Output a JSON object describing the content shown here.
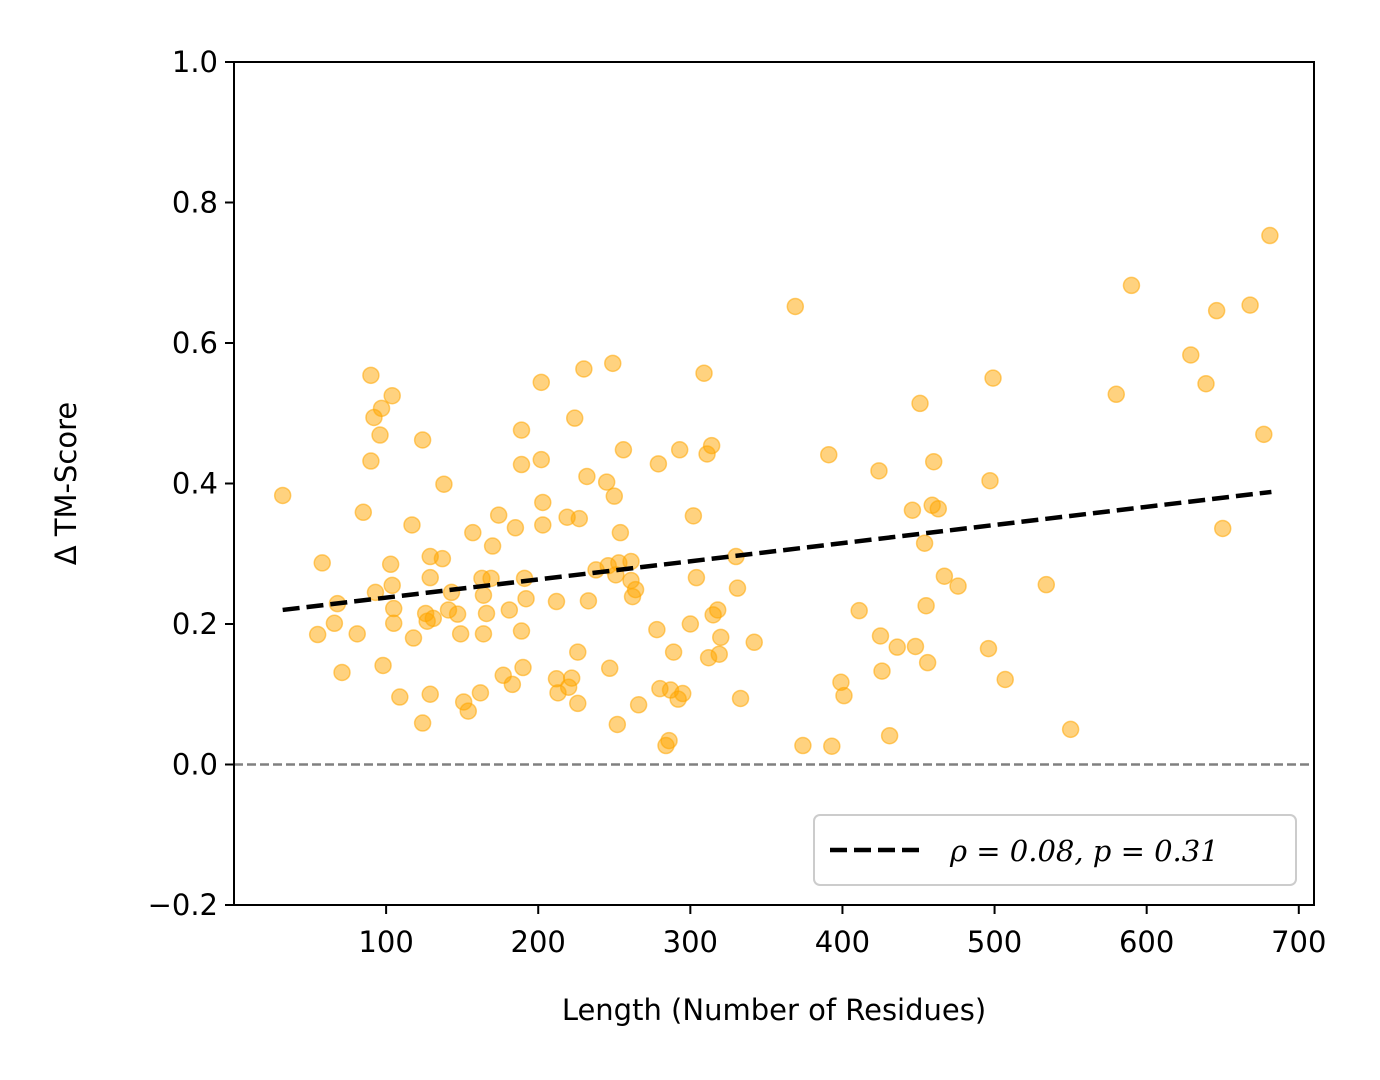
{
  "chart_data": {
    "type": "scatter",
    "title": "",
    "xlabel": "Length (Number of Residues)",
    "ylabel": "Δ TM-Score",
    "xlim": [
      0,
      710
    ],
    "ylim": [
      -0.2,
      1.0
    ],
    "x_ticks": [
      100,
      200,
      300,
      400,
      500,
      600,
      700
    ],
    "y_ticks": [
      -0.2,
      0.0,
      0.2,
      0.4,
      0.6,
      0.8,
      1.0
    ],
    "x_tick_labels": [
      "100",
      "200",
      "300",
      "400",
      "500",
      "600",
      "700"
    ],
    "y_tick_labels": [
      "−0.2",
      "0.0",
      "0.2",
      "0.4",
      "0.6",
      "0.8",
      "1.0"
    ],
    "grid": false,
    "reference_line": {
      "y": 0.0,
      "style": "dashed",
      "color": "#808080"
    },
    "trend_line": {
      "x": [
        32,
        682
      ],
      "y": [
        0.22,
        0.388
      ],
      "style": "dashed",
      "color": "#000000"
    },
    "legend": {
      "position": "lower-right",
      "label": "ρ = 0.08, p = 0.31"
    },
    "point_color": "#ffa500",
    "series": [
      {
        "name": "proteins",
        "points": [
          [
            32,
            0.383
          ],
          [
            55,
            0.185
          ],
          [
            58,
            0.287
          ],
          [
            66,
            0.201
          ],
          [
            68,
            0.229
          ],
          [
            71,
            0.131
          ],
          [
            81,
            0.186
          ],
          [
            85,
            0.359
          ],
          [
            90,
            0.554
          ],
          [
            90,
            0.432
          ],
          [
            92,
            0.494
          ],
          [
            93,
            0.245
          ],
          [
            96,
            0.469
          ],
          [
            97,
            0.507
          ],
          [
            98,
            0.141
          ],
          [
            103,
            0.285
          ],
          [
            104,
            0.255
          ],
          [
            104,
            0.525
          ],
          [
            105,
            0.222
          ],
          [
            105,
            0.201
          ],
          [
            109,
            0.096
          ],
          [
            117,
            0.341
          ],
          [
            118,
            0.18
          ],
          [
            124,
            0.462
          ],
          [
            124,
            0.059
          ],
          [
            126,
            0.215
          ],
          [
            127,
            0.204
          ],
          [
            129,
            0.296
          ],
          [
            129,
            0.266
          ],
          [
            129,
            0.1
          ],
          [
            131,
            0.208
          ],
          [
            137,
            0.293
          ],
          [
            138,
            0.399
          ],
          [
            141,
            0.22
          ],
          [
            143,
            0.245
          ],
          [
            147,
            0.214
          ],
          [
            149,
            0.186
          ],
          [
            151,
            0.089
          ],
          [
            154,
            0.076
          ],
          [
            157,
            0.33
          ],
          [
            162,
            0.102
          ],
          [
            163,
            0.265
          ],
          [
            164,
            0.186
          ],
          [
            164,
            0.241
          ],
          [
            166,
            0.215
          ],
          [
            169,
            0.265
          ],
          [
            170,
            0.311
          ],
          [
            174,
            0.355
          ],
          [
            177,
            0.127
          ],
          [
            181,
            0.22
          ],
          [
            183,
            0.114
          ],
          [
            185,
            0.337
          ],
          [
            189,
            0.476
          ],
          [
            189,
            0.427
          ],
          [
            189,
            0.19
          ],
          [
            190,
            0.138
          ],
          [
            191,
            0.265
          ],
          [
            192,
            0.236
          ],
          [
            202,
            0.544
          ],
          [
            202,
            0.434
          ],
          [
            203,
            0.341
          ],
          [
            203,
            0.373
          ],
          [
            212,
            0.122
          ],
          [
            212,
            0.232
          ],
          [
            213,
            0.102
          ],
          [
            219,
            0.352
          ],
          [
            220,
            0.11
          ],
          [
            222,
            0.123
          ],
          [
            224,
            0.493
          ],
          [
            226,
            0.16
          ],
          [
            226,
            0.087
          ],
          [
            227,
            0.35
          ],
          [
            230,
            0.563
          ],
          [
            232,
            0.41
          ],
          [
            233,
            0.233
          ],
          [
            238,
            0.277
          ],
          [
            245,
            0.402
          ],
          [
            246,
            0.283
          ],
          [
            247,
            0.137
          ],
          [
            249,
            0.571
          ],
          [
            250,
            0.382
          ],
          [
            251,
            0.27
          ],
          [
            252,
            0.057
          ],
          [
            253,
            0.287
          ],
          [
            254,
            0.33
          ],
          [
            256,
            0.448
          ],
          [
            261,
            0.289
          ],
          [
            261,
            0.262
          ],
          [
            262,
            0.239
          ],
          [
            264,
            0.249
          ],
          [
            266,
            0.085
          ],
          [
            278,
            0.192
          ],
          [
            279,
            0.428
          ],
          [
            280,
            0.108
          ],
          [
            284,
            0.027
          ],
          [
            286,
            0.034
          ],
          [
            287,
            0.106
          ],
          [
            289,
            0.16
          ],
          [
            292,
            0.093
          ],
          [
            293,
            0.448
          ],
          [
            295,
            0.101
          ],
          [
            300,
            0.2
          ],
          [
            302,
            0.354
          ],
          [
            304,
            0.266
          ],
          [
            309,
            0.557
          ],
          [
            311,
            0.442
          ],
          [
            312,
            0.152
          ],
          [
            314,
            0.454
          ],
          [
            315,
            0.213
          ],
          [
            318,
            0.22
          ],
          [
            319,
            0.157
          ],
          [
            320,
            0.181
          ],
          [
            330,
            0.296
          ],
          [
            331,
            0.251
          ],
          [
            333,
            0.094
          ],
          [
            342,
            0.174
          ],
          [
            369,
            0.652
          ],
          [
            374,
            0.027
          ],
          [
            391,
            0.441
          ],
          [
            393,
            0.026
          ],
          [
            399,
            0.117
          ],
          [
            401,
            0.098
          ],
          [
            411,
            0.219
          ],
          [
            424,
            0.418
          ],
          [
            425,
            0.183
          ],
          [
            426,
            0.133
          ],
          [
            431,
            0.041
          ],
          [
            436,
            0.167
          ],
          [
            446,
            0.362
          ],
          [
            448,
            0.168
          ],
          [
            451,
            0.514
          ],
          [
            454,
            0.315
          ],
          [
            455,
            0.226
          ],
          [
            456,
            0.145
          ],
          [
            459,
            0.369
          ],
          [
            460,
            0.431
          ],
          [
            463,
            0.364
          ],
          [
            467,
            0.268
          ],
          [
            476,
            0.254
          ],
          [
            496,
            0.165
          ],
          [
            497,
            0.404
          ],
          [
            499,
            0.55
          ],
          [
            507,
            0.121
          ],
          [
            534,
            0.256
          ],
          [
            550,
            0.05
          ],
          [
            580,
            0.527
          ],
          [
            590,
            0.682
          ],
          [
            629,
            0.583
          ],
          [
            639,
            0.542
          ],
          [
            646,
            0.646
          ],
          [
            650,
            0.336
          ],
          [
            668,
            0.654
          ],
          [
            677,
            0.47
          ],
          [
            681,
            0.753
          ]
        ]
      }
    ]
  }
}
